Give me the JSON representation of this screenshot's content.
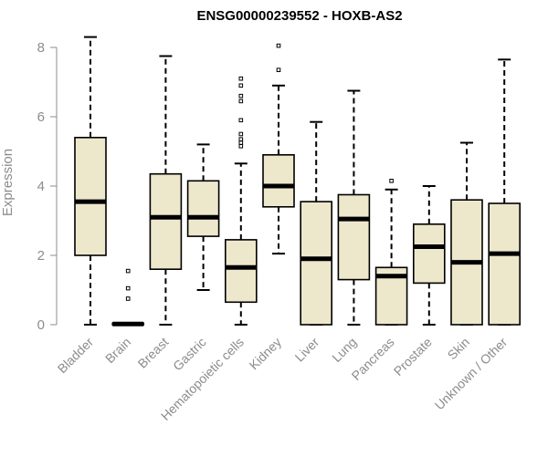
{
  "chart_data": {
    "type": "box",
    "title": "ENSG00000239552 - HOXB-AS2",
    "ylabel": "Expression",
    "xlabel": "",
    "ylim": [
      0,
      8.5
    ],
    "yticks": [
      0,
      2,
      4,
      6,
      8
    ],
    "box_fill": "#ede7cc",
    "line_color": "#000000",
    "tick_color": "#8c8c8c",
    "categories": [
      "Bladder",
      "Brain",
      "Breast",
      "Gastric",
      "Hematopoietic cells",
      "Kidney",
      "Liver",
      "Lung",
      "Pancreas",
      "Prostate",
      "Skin",
      "Unknown / Other"
    ],
    "boxes": [
      {
        "whisker_low": 0,
        "q1": 2.0,
        "median": 3.55,
        "q3": 5.4,
        "whisker_high": 8.3,
        "outliers": []
      },
      {
        "whisker_low": 0,
        "q1": 0,
        "median": 0.02,
        "q3": 0.04,
        "whisker_high": 0.05,
        "outliers": [
          0.75,
          1.05,
          1.55
        ]
      },
      {
        "whisker_low": 0,
        "q1": 1.6,
        "median": 3.1,
        "q3": 4.35,
        "whisker_high": 7.75,
        "outliers": []
      },
      {
        "whisker_low": 1.0,
        "q1": 2.55,
        "median": 3.1,
        "q3": 4.15,
        "whisker_high": 5.2,
        "outliers": []
      },
      {
        "whisker_low": 0,
        "q1": 0.65,
        "median": 1.65,
        "q3": 2.45,
        "whisker_high": 4.65,
        "outliers": [
          5.15,
          5.25,
          5.35,
          5.5,
          5.9,
          6.45,
          6.6,
          6.9,
          7.1
        ]
      },
      {
        "whisker_low": 2.05,
        "q1": 3.4,
        "median": 4.0,
        "q3": 4.9,
        "whisker_high": 6.9,
        "outliers": [
          7.35,
          8.05
        ]
      },
      {
        "whisker_low": 0,
        "q1": 0,
        "median": 1.9,
        "q3": 3.55,
        "whisker_high": 5.85,
        "outliers": []
      },
      {
        "whisker_low": 0,
        "q1": 1.3,
        "median": 3.05,
        "q3": 3.75,
        "whisker_high": 6.75,
        "outliers": []
      },
      {
        "whisker_low": 0,
        "q1": 0,
        "median": 1.4,
        "q3": 1.65,
        "whisker_high": 3.9,
        "outliers": [
          4.15
        ]
      },
      {
        "whisker_low": 0,
        "q1": 1.2,
        "median": 2.25,
        "q3": 2.9,
        "whisker_high": 4.0,
        "outliers": []
      },
      {
        "whisker_low": 0,
        "q1": 0,
        "median": 1.8,
        "q3": 3.6,
        "whisker_high": 5.25,
        "outliers": []
      },
      {
        "whisker_low": 0,
        "q1": 0,
        "median": 2.05,
        "q3": 3.5,
        "whisker_high": 7.65,
        "outliers": []
      }
    ]
  }
}
